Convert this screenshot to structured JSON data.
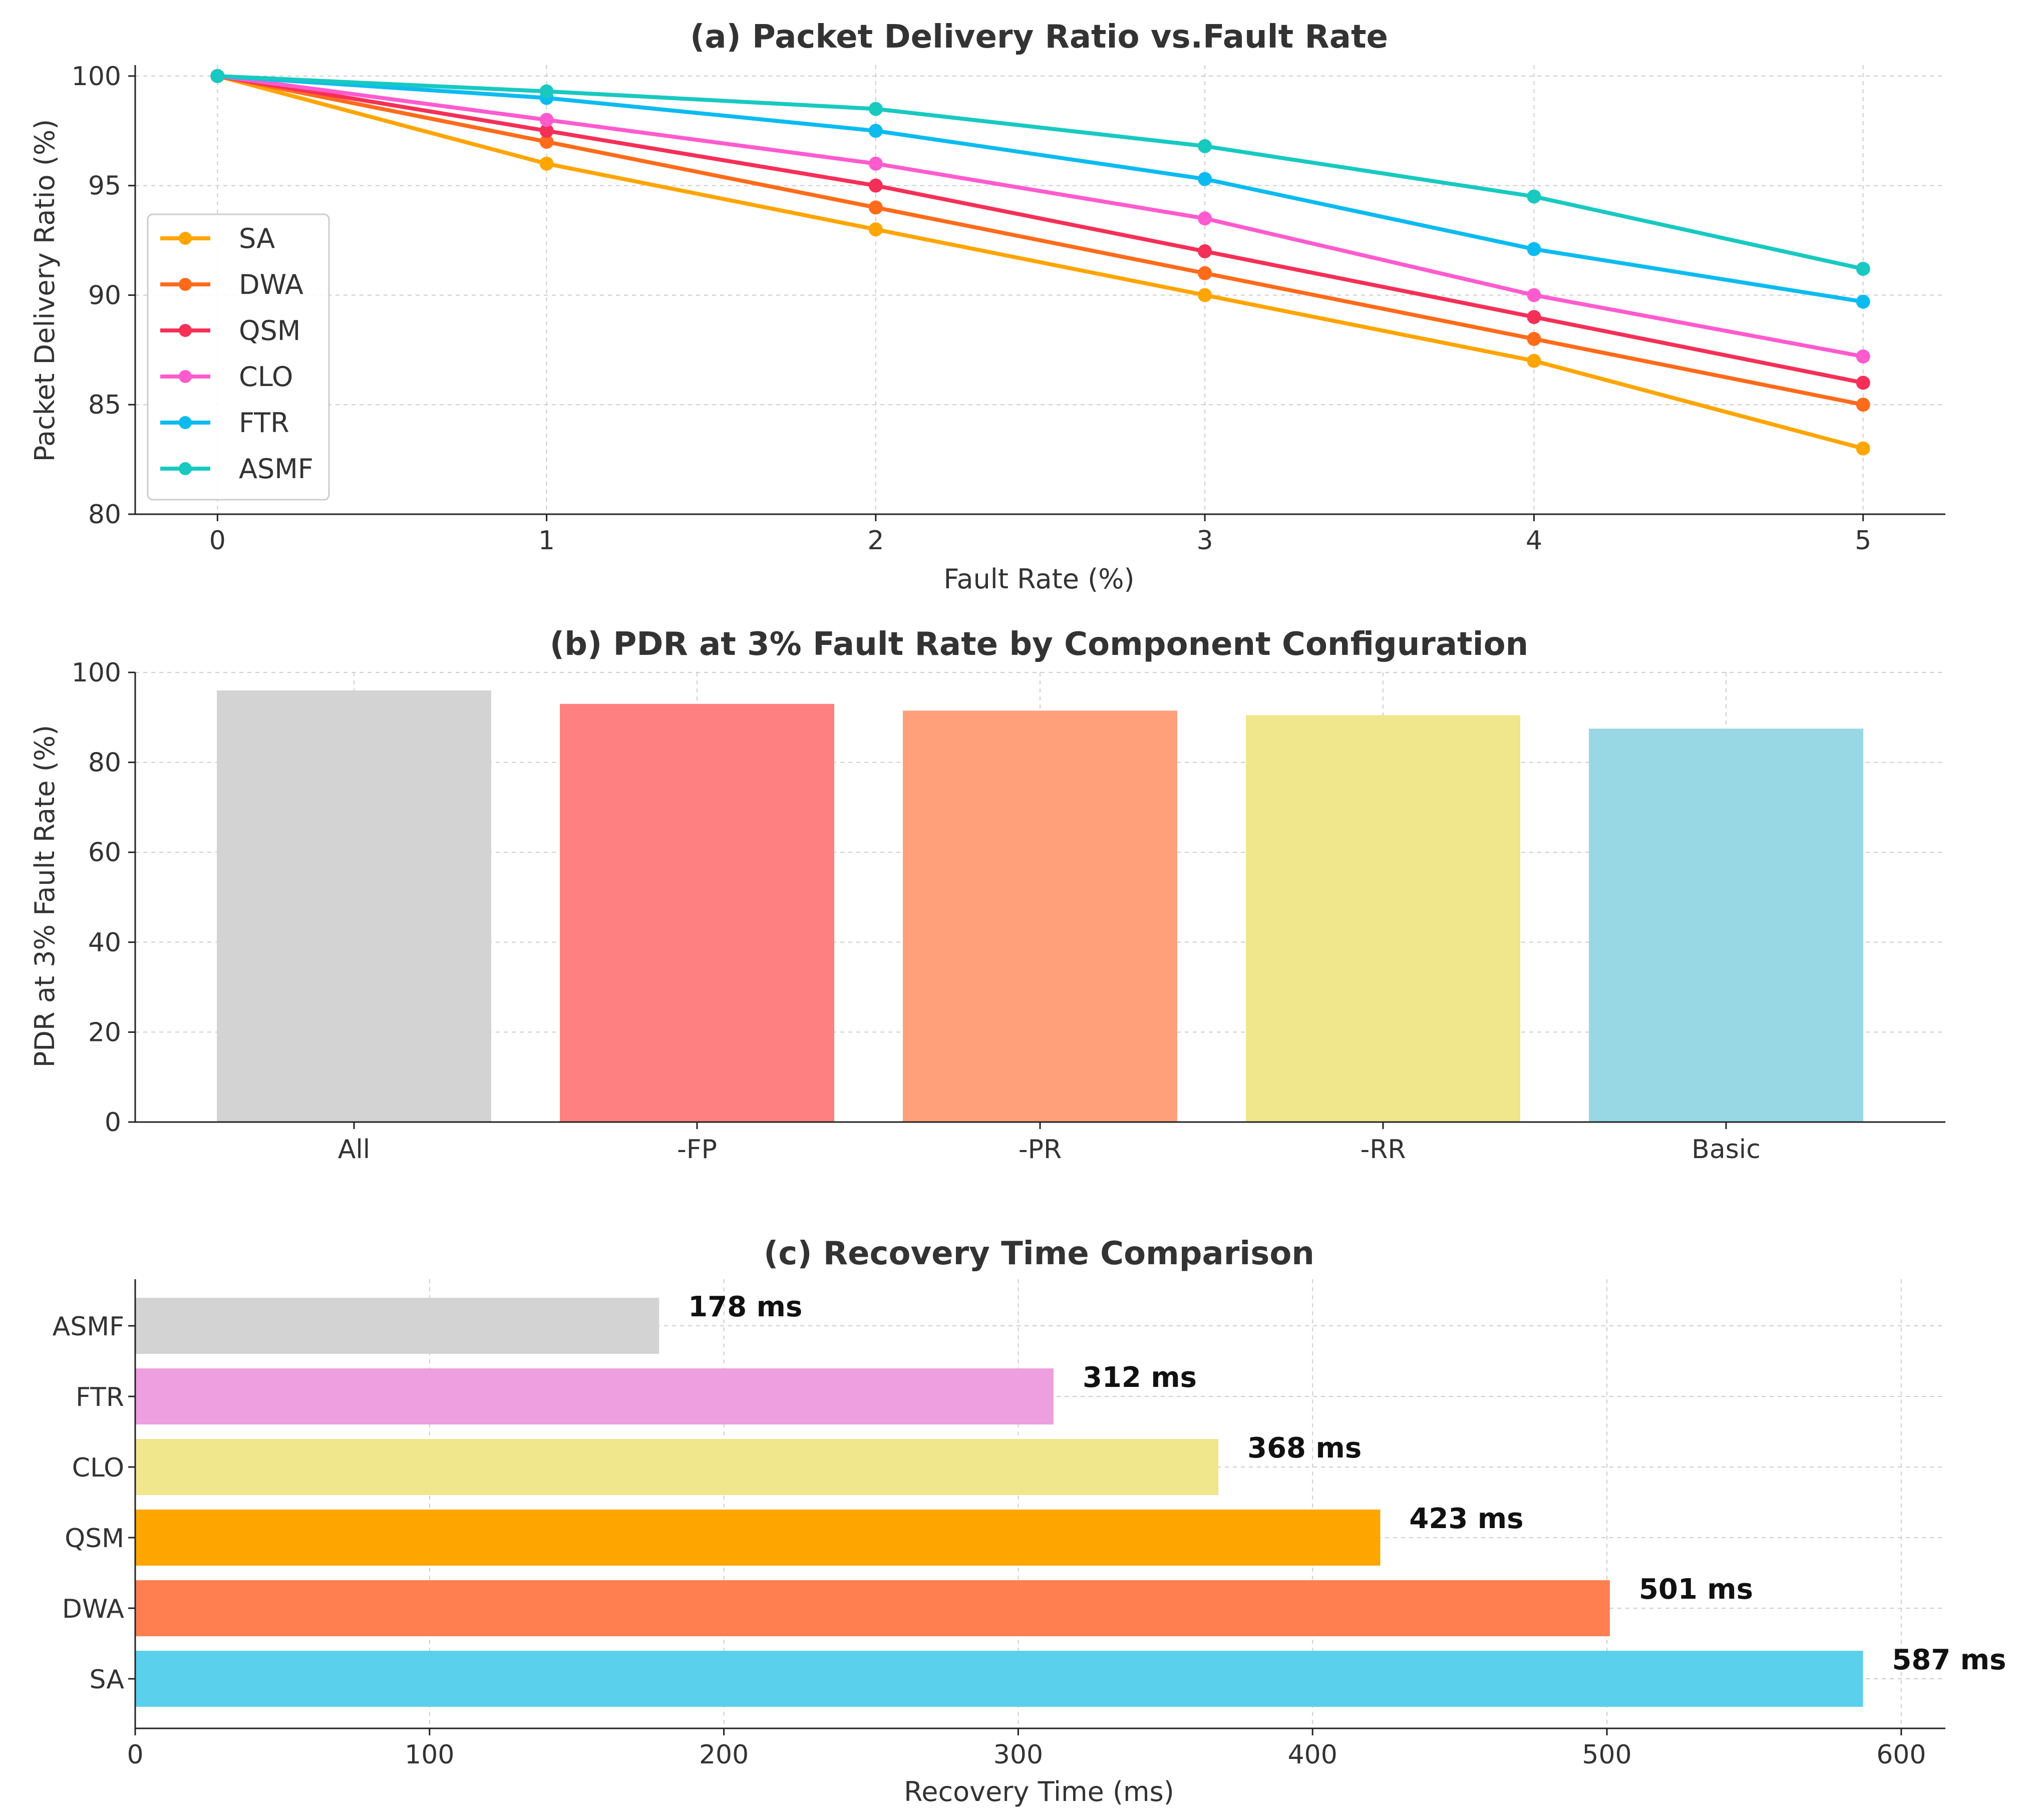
{
  "chart_data": [
    {
      "type": "line",
      "title": "(a) Packet Delivery Ratio vs.Fault Rate",
      "xlabel": "Fault Rate (%)",
      "ylabel": "Packet Delivery Ratio (%)",
      "x": [
        0,
        1,
        2,
        3,
        4,
        5
      ],
      "xticks": [
        "0",
        "1",
        "2",
        "3",
        "4",
        "5"
      ],
      "yticks": [
        "80",
        "85",
        "90",
        "95",
        "100"
      ],
      "xlim": [
        -0.25,
        5.25
      ],
      "ylim": [
        80,
        100.5
      ],
      "grid": true,
      "legend_position": "center-left",
      "series": [
        {
          "name": "SA",
          "color": "#FFA500",
          "values": [
            100,
            96,
            93,
            90,
            87,
            83
          ]
        },
        {
          "name": "DWA",
          "color": "#FF6B1A",
          "values": [
            100,
            97,
            94,
            91,
            88,
            85
          ]
        },
        {
          "name": "QSM",
          "color": "#F52F57",
          "values": [
            100,
            97.5,
            95,
            92,
            89,
            86
          ]
        },
        {
          "name": "CLO",
          "color": "#FF5BCF",
          "values": [
            100,
            98,
            96,
            93.5,
            90,
            87.2
          ]
        },
        {
          "name": "FTR",
          "color": "#0BBBF0",
          "values": [
            100,
            99,
            97.5,
            95.3,
            92.1,
            89.7
          ]
        },
        {
          "name": "ASMF",
          "color": "#18C9C0",
          "values": [
            100,
            99.3,
            98.5,
            96.8,
            94.5,
            91.2
          ]
        }
      ]
    },
    {
      "type": "bar",
      "title": "(b) PDR at 3% Fault Rate by Component Configuration",
      "xlabel": "",
      "ylabel": "PDR at 3% Fault Rate (%)",
      "categories": [
        "All",
        "-FP",
        "-PR",
        "-RR",
        "Basic"
      ],
      "values": [
        96,
        93,
        91.5,
        90.5,
        87.5
      ],
      "colors": [
        "#D3D3D3",
        "#FF8080",
        "#FFA07A",
        "#F0E68C",
        "#98D8E4"
      ],
      "yticks": [
        "0",
        "20",
        "40",
        "60",
        "80",
        "100"
      ],
      "ylim": [
        0,
        100
      ],
      "grid": true
    },
    {
      "type": "barh",
      "title": "(c) Recovery Time Comparison",
      "xlabel": "Recovery Time (ms)",
      "ylabel": "",
      "categories": [
        "ASMF",
        "FTR",
        "CLO",
        "QSM",
        "DWA",
        "SA"
      ],
      "values": [
        178,
        312,
        368,
        423,
        501,
        587
      ],
      "labels": [
        "178 ms",
        "312 ms",
        "368 ms",
        "423 ms",
        "501 ms",
        "587 ms"
      ],
      "colors": [
        "#D3D3D3",
        "#EE9FE0",
        "#F0E68C",
        "#FFA500",
        "#FF7F50",
        "#5BD0EC"
      ],
      "xticks": [
        "0",
        "100",
        "200",
        "300",
        "400",
        "500",
        "600"
      ],
      "xlim": [
        0,
        615
      ],
      "grid": true
    }
  ]
}
